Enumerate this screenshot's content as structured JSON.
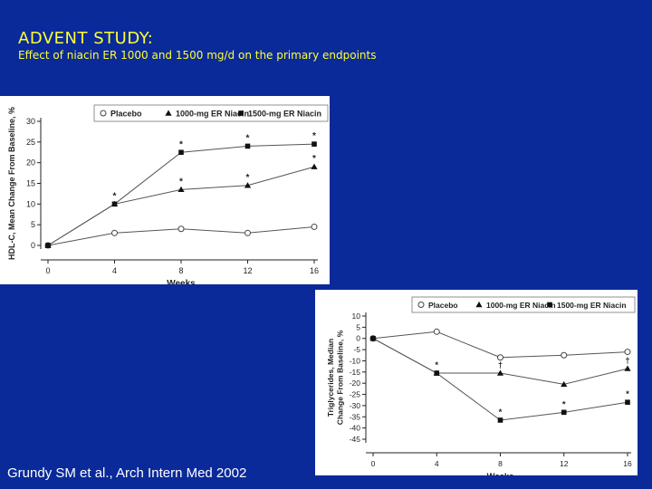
{
  "slide": {
    "title": "ADVENT STUDY:",
    "subtitle": "Effect of niacin ER 1000 and 1500 mg/d on the primary endpoints",
    "citation": "Grundy SM et al., Arch Intern Med 2002",
    "background_color": "#0a2a9a",
    "title_color": "#ffff33"
  },
  "chart_data": [
    {
      "type": "line",
      "ylabel": "HDL-C, Mean Change From Baseline, %",
      "xlabel": "Weeks",
      "x": [
        0,
        4,
        8,
        12,
        16
      ],
      "xticks": [
        "0",
        "4",
        "8",
        "12",
        "16"
      ],
      "ylim": [
        0,
        30
      ],
      "yticks": [
        "0",
        "5",
        "10",
        "15",
        "20",
        "25",
        "30"
      ],
      "grid": false,
      "legend_position": "top",
      "series": [
        {
          "name": "Placebo",
          "marker": "open-circle",
          "values": [
            0,
            3,
            4,
            3,
            4.5
          ],
          "annotations": [
            "",
            "",
            "",
            "",
            ""
          ]
        },
        {
          "name": "1000-mg ER Niacin",
          "marker": "filled-triangle",
          "values": [
            0,
            10,
            13.5,
            14.5,
            19
          ],
          "annotations": [
            "",
            "",
            "*",
            "*",
            "*"
          ]
        },
        {
          "name": "1500-mg ER Niacin",
          "marker": "filled-square",
          "values": [
            0,
            10,
            22.5,
            24,
            24.5
          ],
          "annotations": [
            "",
            "*",
            "*",
            "*",
            "*"
          ]
        }
      ]
    },
    {
      "type": "line",
      "ylabel": "Triglycerides, Median Change From Baseline, %",
      "xlabel": "Weeks",
      "x": [
        0,
        4,
        8,
        12,
        16
      ],
      "xticks": [
        "0",
        "4",
        "8",
        "12",
        "16"
      ],
      "ylim": [
        -45,
        10
      ],
      "yticks": [
        "10",
        "5",
        "0",
        "-5",
        "-10",
        "-15",
        "-20",
        "-25",
        "-30",
        "-35",
        "-40",
        "-45"
      ],
      "grid": false,
      "legend_position": "top",
      "series": [
        {
          "name": "Placebo",
          "marker": "open-circle",
          "values": [
            0,
            3,
            -8.5,
            -7.5,
            -6
          ],
          "annotations": [
            "",
            "",
            "",
            "",
            ""
          ]
        },
        {
          "name": "1000-mg ER Niacin",
          "marker": "filled-triangle",
          "values": [
            0,
            -15.5,
            -15.5,
            -20.5,
            -13.5
          ],
          "annotations": [
            "",
            "",
            "†",
            "",
            "†"
          ]
        },
        {
          "name": "1500-mg ER Niacin",
          "marker": "filled-square",
          "values": [
            0,
            -15.5,
            -36.5,
            -33,
            -28.5
          ],
          "annotations": [
            "",
            "*",
            "*",
            "*",
            "*"
          ]
        }
      ]
    }
  ]
}
